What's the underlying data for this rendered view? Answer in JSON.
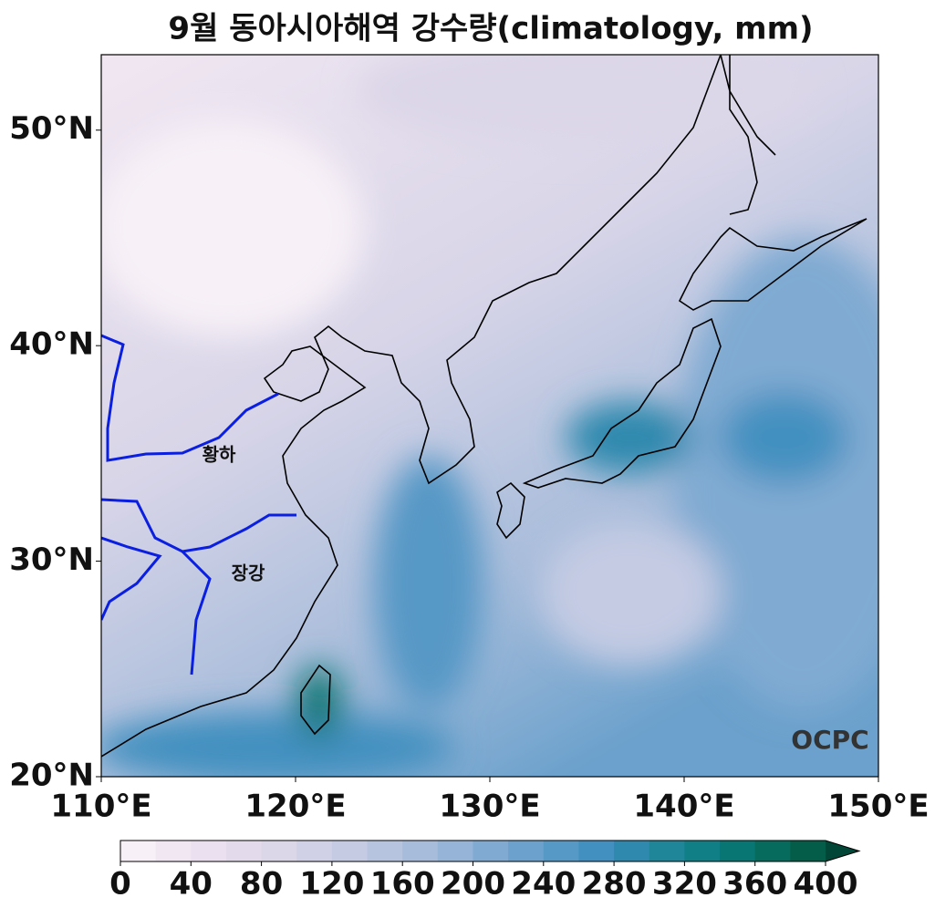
{
  "title": "9월 동아시아해역 강수량(climatology, mm)",
  "map": {
    "lon_range": [
      110,
      150
    ],
    "lat_range": [
      20,
      53.5
    ],
    "lon_ticks": [
      {
        "value": 110,
        "label": "110°E"
      },
      {
        "value": 120,
        "label": "120°E"
      },
      {
        "value": 130,
        "label": "130°E"
      },
      {
        "value": 140,
        "label": "140°E"
      },
      {
        "value": 150,
        "label": "150°E"
      }
    ],
    "lat_ticks": [
      {
        "value": 20,
        "label": "20°N"
      },
      {
        "value": 30,
        "label": "30°N"
      },
      {
        "value": 40,
        "label": "40°N"
      },
      {
        "value": 50,
        "label": "50°N"
      }
    ],
    "river_labels": [
      "황하",
      "장강"
    ],
    "watermark": "OCPC"
  },
  "colorbar": {
    "levels": [
      0,
      20,
      40,
      60,
      80,
      100,
      120,
      140,
      160,
      180,
      200,
      220,
      240,
      260,
      280,
      300,
      320,
      340,
      360,
      380,
      400
    ],
    "colors": [
      "#f7f0f7",
      "#f1e7f2",
      "#ebe0ef",
      "#e3dbeb",
      "#dbd6e8",
      "#d0d1e6",
      "#c4cbe3",
      "#b6c4df",
      "#a7bcdb",
      "#95b4d7",
      "#80aad2",
      "#6ba1cc",
      "#5698c6",
      "#4290c0",
      "#2f89ae",
      "#1f8599",
      "#117f86",
      "#087672",
      "#066b5c",
      "#045d48",
      "#014636"
    ],
    "ticks": [
      0,
      40,
      80,
      120,
      160,
      200,
      240,
      280,
      320,
      360,
      400
    ],
    "extend": "max"
  }
}
